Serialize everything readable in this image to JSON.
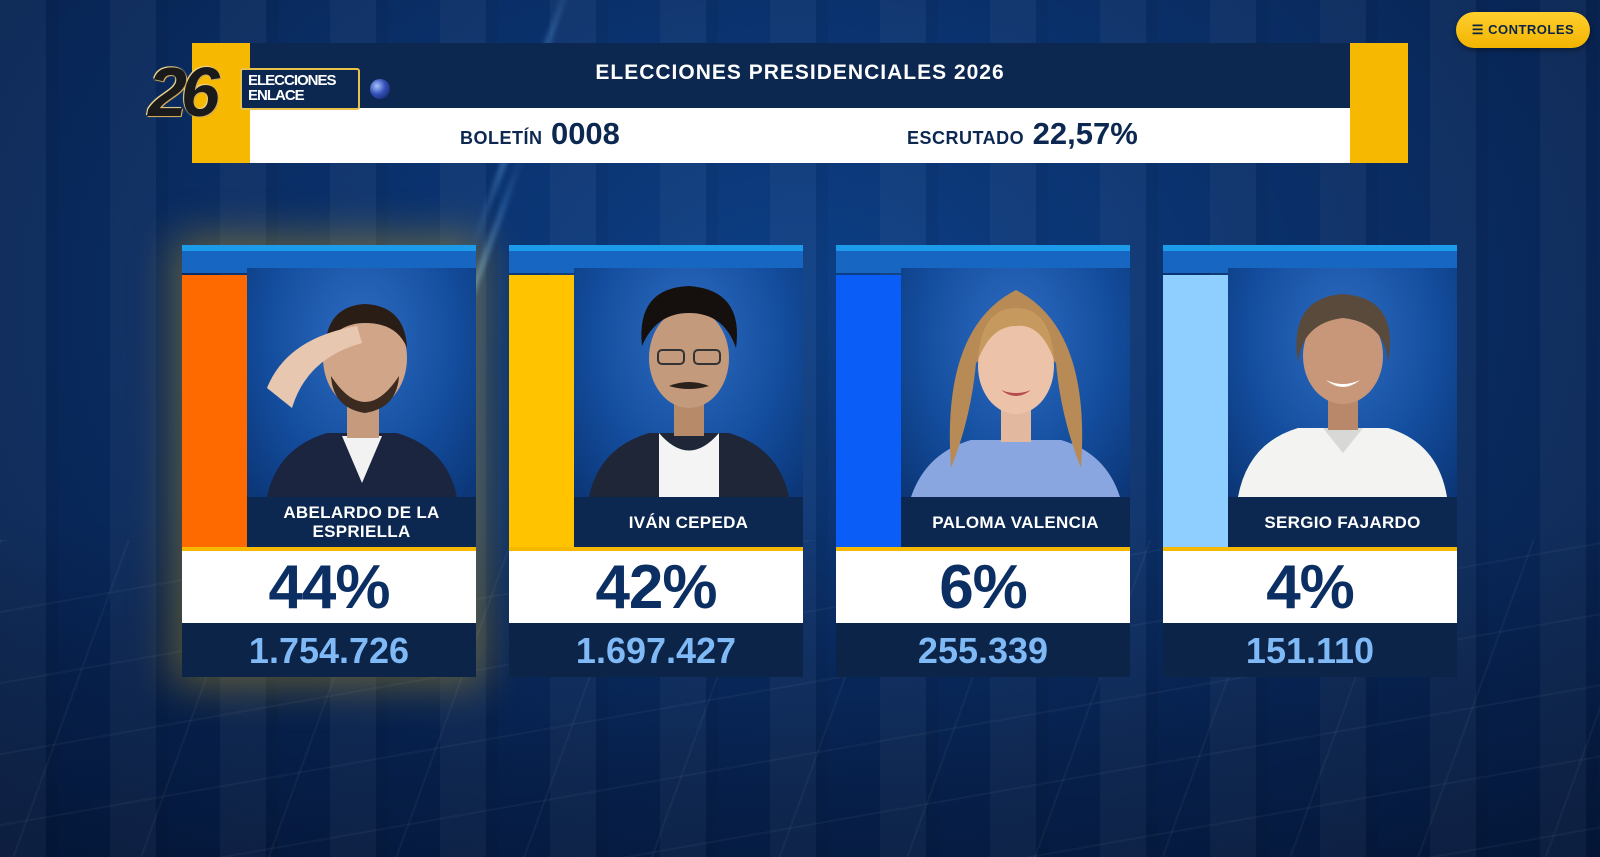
{
  "controls": {
    "icon": "menu-icon",
    "label": "☰ CONTROLES"
  },
  "logo": {
    "number": "26",
    "line1": "ELECCIONES",
    "line2": "ENLACE"
  },
  "header": {
    "title": "ELECCIONES PRESIDENCIALES 2026",
    "bulletin_label": "BOLETÍN",
    "bulletin_value": "0008",
    "counted_label": "ESCRUTADO",
    "counted_value": "22,57%"
  },
  "colors": {
    "accent_gold": "#f6b800",
    "navy": "#0c2850",
    "candidate_1": "#ff6a00",
    "candidate_2": "#ffc300",
    "candidate_3": "#0a5ef7",
    "candidate_4": "#8fcfff"
  },
  "candidates": [
    {
      "name": "ABELARDO DE LA ESPRIELLA",
      "percent": "44%",
      "votes": "1.754.726",
      "percent_value": 44,
      "color": "#ff6a00",
      "leader": true
    },
    {
      "name": "IVÁN CEPEDA",
      "percent": "42%",
      "votes": "1.697.427",
      "percent_value": 42,
      "color": "#ffc300",
      "leader": false
    },
    {
      "name": "PALOMA VALENCIA",
      "percent": "6%",
      "votes": "255.339",
      "percent_value": 6,
      "color": "#0a5ef7",
      "leader": false
    },
    {
      "name": "SERGIO FAJARDO",
      "percent": "4%",
      "votes": "151.110",
      "percent_value": 4,
      "color": "#8fcfff",
      "leader": false
    }
  ]
}
